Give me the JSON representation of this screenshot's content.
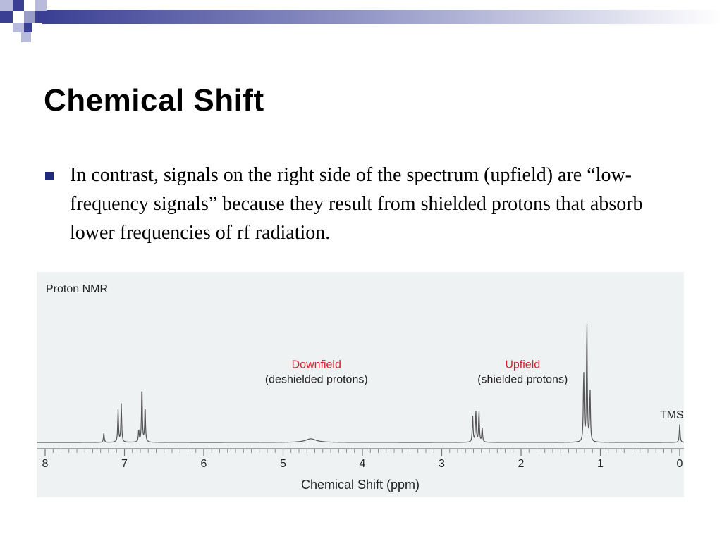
{
  "slide": {
    "title": "Chemical Shift",
    "bullet": "In contrast, signals on the right side of the spectrum (upfield) are “low-frequency signals” because they result from shielded protons that absorb lower frequencies of rf radiation."
  },
  "colors": {
    "header_blue": "#3b3f94",
    "header_light": "#9a9cc8",
    "bullet": "#1f2a7a",
    "panel_bg": "#eff2f3",
    "label_red": "#d4202f",
    "trace": "#555555"
  },
  "chart_data": {
    "type": "line",
    "title": "Proton NMR",
    "xlabel": "Chemical Shift (ppm)",
    "ylabel": "",
    "xlim": [
      8,
      0
    ],
    "ylim": [
      0,
      1
    ],
    "x_ticks": [
      8,
      7,
      6,
      5,
      4,
      3,
      2,
      1,
      0
    ],
    "annotations": [
      {
        "text": "Downfield",
        "subtext": "(deshielded protons)",
        "x": 4.58,
        "y": 0.62
      },
      {
        "text": "Upfield",
        "subtext": "(shielded protons)",
        "x": 1.98,
        "y": 0.62
      },
      {
        "text": "TMS",
        "x": 0.1,
        "y": 0.2
      }
    ],
    "peaks": [
      {
        "x": 7.26,
        "y": 0.08
      },
      {
        "x": 7.08,
        "y": 0.27
      },
      {
        "x": 7.04,
        "y": 0.32
      },
      {
        "x": 6.82,
        "y": 0.1
      },
      {
        "x": 6.78,
        "y": 0.47
      },
      {
        "x": 6.74,
        "y": 0.3
      },
      {
        "x": 4.65,
        "y": 0.03
      },
      {
        "x": 2.61,
        "y": 0.22
      },
      {
        "x": 2.57,
        "y": 0.26
      },
      {
        "x": 2.53,
        "y": 0.26
      },
      {
        "x": 2.49,
        "y": 0.12
      },
      {
        "x": 1.21,
        "y": 0.58
      },
      {
        "x": 1.17,
        "y": 1.0
      },
      {
        "x": 1.13,
        "y": 0.43
      },
      {
        "x": 0.0,
        "y": 0.15
      }
    ]
  }
}
